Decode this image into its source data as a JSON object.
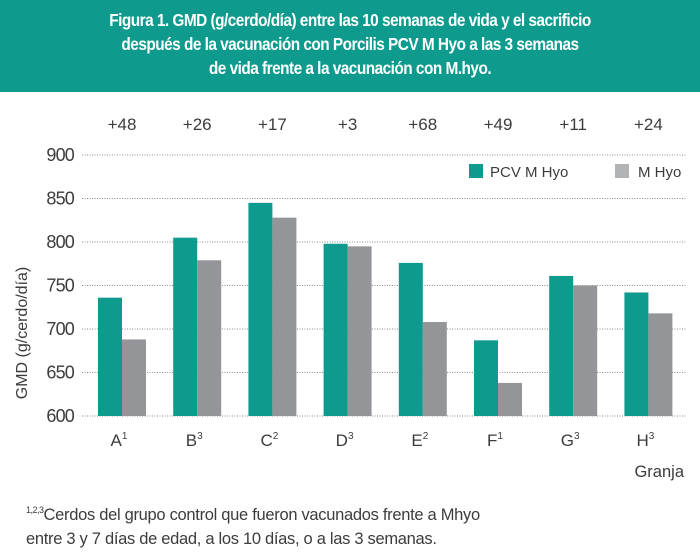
{
  "header": {
    "title_lines": [
      "Figura 1. GMD (g/cerdo/día) entre las 10 semanas de vida y el sacrificio",
      "después de la vacunación con Porcilis PCV M Hyo a las 3 semanas",
      "de vida frente a la vacunación con M.hyo."
    ]
  },
  "chart_data": {
    "type": "bar",
    "title": "Figura 1. GMD (g/cerdo/día) entre las 10 semanas de vida y el sacrificio después de la vacunación con Porcilis PCV M Hyo a las 3 semanas de vida frente a la vacunación con M.hyo.",
    "xlabel": "Granja",
    "ylabel": "GMD (g/cerdo/día)",
    "ylim": [
      600,
      900
    ],
    "yticks": [
      600,
      650,
      700,
      750,
      800,
      850,
      900
    ],
    "grid": "horizontal-dotted",
    "legend_position": "top-right",
    "categories": [
      "A",
      "B",
      "C",
      "D",
      "E",
      "F",
      "G",
      "H"
    ],
    "category_superscripts": [
      "1",
      "3",
      "2",
      "3",
      "2",
      "1",
      "3",
      "3"
    ],
    "difference_labels": [
      "+48",
      "+26",
      "+17",
      "+3",
      "+68",
      "+49",
      "+11",
      "+24"
    ],
    "series": [
      {
        "name": "PCV M Hyo",
        "color": "#0e9b8e",
        "values": [
          736,
          805,
          845,
          798,
          776,
          687,
          761,
          742
        ]
      },
      {
        "name": "M Hyo",
        "color": "#939598",
        "values": [
          688,
          779,
          828,
          795,
          708,
          638,
          750,
          718
        ]
      }
    ]
  },
  "footnote": {
    "superscript": "1,2,3",
    "line1": "Cerdos del grupo control que fueron vacunados frente a Mhyo",
    "line2": "entre 3 y 7 días de edad, a los 10 días, o a las 3 semanas."
  }
}
